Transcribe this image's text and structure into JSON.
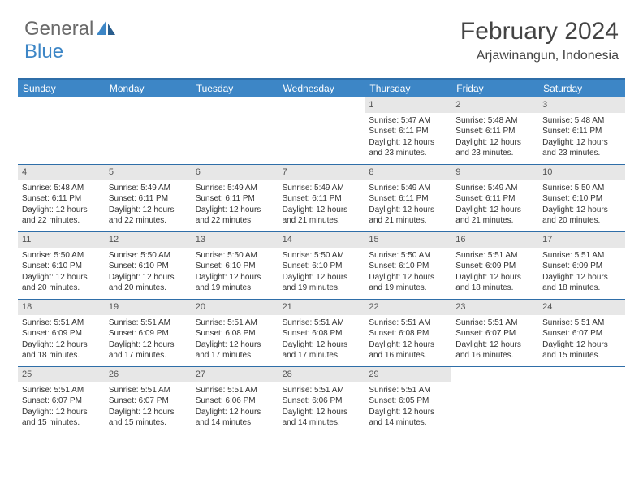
{
  "logo": {
    "text1": "General",
    "text2": "Blue"
  },
  "title": "February 2024",
  "location": "Arjawinangun, Indonesia",
  "colors": {
    "header_bg": "#3d86c6",
    "border": "#2f6ea8",
    "daynum_bg": "#e7e7e7",
    "text": "#333333",
    "logo_gray": "#6a6a6a"
  },
  "weekdays": [
    "Sunday",
    "Monday",
    "Tuesday",
    "Wednesday",
    "Thursday",
    "Friday",
    "Saturday"
  ],
  "weeks": [
    [
      null,
      null,
      null,
      null,
      {
        "n": "1",
        "sr": "Sunrise: 5:47 AM",
        "ss": "Sunset: 6:11 PM",
        "dl": "Daylight: 12 hours and 23 minutes."
      },
      {
        "n": "2",
        "sr": "Sunrise: 5:48 AM",
        "ss": "Sunset: 6:11 PM",
        "dl": "Daylight: 12 hours and 23 minutes."
      },
      {
        "n": "3",
        "sr": "Sunrise: 5:48 AM",
        "ss": "Sunset: 6:11 PM",
        "dl": "Daylight: 12 hours and 23 minutes."
      }
    ],
    [
      {
        "n": "4",
        "sr": "Sunrise: 5:48 AM",
        "ss": "Sunset: 6:11 PM",
        "dl": "Daylight: 12 hours and 22 minutes."
      },
      {
        "n": "5",
        "sr": "Sunrise: 5:49 AM",
        "ss": "Sunset: 6:11 PM",
        "dl": "Daylight: 12 hours and 22 minutes."
      },
      {
        "n": "6",
        "sr": "Sunrise: 5:49 AM",
        "ss": "Sunset: 6:11 PM",
        "dl": "Daylight: 12 hours and 22 minutes."
      },
      {
        "n": "7",
        "sr": "Sunrise: 5:49 AM",
        "ss": "Sunset: 6:11 PM",
        "dl": "Daylight: 12 hours and 21 minutes."
      },
      {
        "n": "8",
        "sr": "Sunrise: 5:49 AM",
        "ss": "Sunset: 6:11 PM",
        "dl": "Daylight: 12 hours and 21 minutes."
      },
      {
        "n": "9",
        "sr": "Sunrise: 5:49 AM",
        "ss": "Sunset: 6:11 PM",
        "dl": "Daylight: 12 hours and 21 minutes."
      },
      {
        "n": "10",
        "sr": "Sunrise: 5:50 AM",
        "ss": "Sunset: 6:10 PM",
        "dl": "Daylight: 12 hours and 20 minutes."
      }
    ],
    [
      {
        "n": "11",
        "sr": "Sunrise: 5:50 AM",
        "ss": "Sunset: 6:10 PM",
        "dl": "Daylight: 12 hours and 20 minutes."
      },
      {
        "n": "12",
        "sr": "Sunrise: 5:50 AM",
        "ss": "Sunset: 6:10 PM",
        "dl": "Daylight: 12 hours and 20 minutes."
      },
      {
        "n": "13",
        "sr": "Sunrise: 5:50 AM",
        "ss": "Sunset: 6:10 PM",
        "dl": "Daylight: 12 hours and 19 minutes."
      },
      {
        "n": "14",
        "sr": "Sunrise: 5:50 AM",
        "ss": "Sunset: 6:10 PM",
        "dl": "Daylight: 12 hours and 19 minutes."
      },
      {
        "n": "15",
        "sr": "Sunrise: 5:50 AM",
        "ss": "Sunset: 6:10 PM",
        "dl": "Daylight: 12 hours and 19 minutes."
      },
      {
        "n": "16",
        "sr": "Sunrise: 5:51 AM",
        "ss": "Sunset: 6:09 PM",
        "dl": "Daylight: 12 hours and 18 minutes."
      },
      {
        "n": "17",
        "sr": "Sunrise: 5:51 AM",
        "ss": "Sunset: 6:09 PM",
        "dl": "Daylight: 12 hours and 18 minutes."
      }
    ],
    [
      {
        "n": "18",
        "sr": "Sunrise: 5:51 AM",
        "ss": "Sunset: 6:09 PM",
        "dl": "Daylight: 12 hours and 18 minutes."
      },
      {
        "n": "19",
        "sr": "Sunrise: 5:51 AM",
        "ss": "Sunset: 6:09 PM",
        "dl": "Daylight: 12 hours and 17 minutes."
      },
      {
        "n": "20",
        "sr": "Sunrise: 5:51 AM",
        "ss": "Sunset: 6:08 PM",
        "dl": "Daylight: 12 hours and 17 minutes."
      },
      {
        "n": "21",
        "sr": "Sunrise: 5:51 AM",
        "ss": "Sunset: 6:08 PM",
        "dl": "Daylight: 12 hours and 17 minutes."
      },
      {
        "n": "22",
        "sr": "Sunrise: 5:51 AM",
        "ss": "Sunset: 6:08 PM",
        "dl": "Daylight: 12 hours and 16 minutes."
      },
      {
        "n": "23",
        "sr": "Sunrise: 5:51 AM",
        "ss": "Sunset: 6:07 PM",
        "dl": "Daylight: 12 hours and 16 minutes."
      },
      {
        "n": "24",
        "sr": "Sunrise: 5:51 AM",
        "ss": "Sunset: 6:07 PM",
        "dl": "Daylight: 12 hours and 15 minutes."
      }
    ],
    [
      {
        "n": "25",
        "sr": "Sunrise: 5:51 AM",
        "ss": "Sunset: 6:07 PM",
        "dl": "Daylight: 12 hours and 15 minutes."
      },
      {
        "n": "26",
        "sr": "Sunrise: 5:51 AM",
        "ss": "Sunset: 6:07 PM",
        "dl": "Daylight: 12 hours and 15 minutes."
      },
      {
        "n": "27",
        "sr": "Sunrise: 5:51 AM",
        "ss": "Sunset: 6:06 PM",
        "dl": "Daylight: 12 hours and 14 minutes."
      },
      {
        "n": "28",
        "sr": "Sunrise: 5:51 AM",
        "ss": "Sunset: 6:06 PM",
        "dl": "Daylight: 12 hours and 14 minutes."
      },
      {
        "n": "29",
        "sr": "Sunrise: 5:51 AM",
        "ss": "Sunset: 6:05 PM",
        "dl": "Daylight: 12 hours and 14 minutes."
      },
      null,
      null
    ]
  ]
}
